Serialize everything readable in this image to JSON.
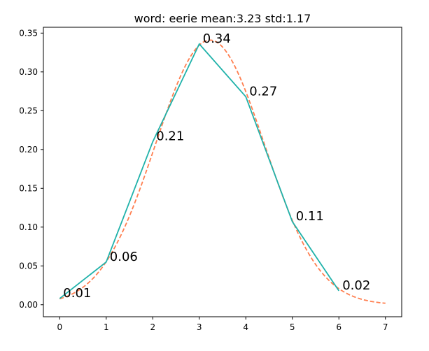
{
  "chart_data": {
    "type": "line",
    "title": "word: eerie mean:3.23 std:1.17",
    "xlabel": "",
    "ylabel": "",
    "xlim": [
      -0.35,
      7.35
    ],
    "ylim": [
      -0.0155,
      0.3575
    ],
    "x_ticks": [
      0,
      1,
      2,
      3,
      4,
      5,
      6,
      7
    ],
    "y_ticks": [
      0.0,
      0.05,
      0.1,
      0.15,
      0.2,
      0.25,
      0.3,
      0.35
    ],
    "y_tick_labels": [
      "0.00",
      "0.05",
      "0.10",
      "0.15",
      "0.20",
      "0.25",
      "0.30",
      "0.35"
    ],
    "grid": false,
    "series": [
      {
        "kind": "observed",
        "color": "#20b2aa",
        "style": "solid",
        "x": [
          0,
          1,
          2,
          3,
          4,
          5,
          6
        ],
        "values": [
          0.008,
          0.055,
          0.21,
          0.336,
          0.268,
          0.107,
          0.018
        ],
        "point_labels": [
          "0.01",
          "0.06",
          "0.21",
          "0.34",
          "0.27",
          "0.11",
          "0.02"
        ]
      },
      {
        "kind": "normal-fit",
        "color": "#ff7f50",
        "style": "dashed",
        "mean": 3.23,
        "std": 1.17,
        "x_range": [
          0,
          7
        ]
      }
    ]
  }
}
